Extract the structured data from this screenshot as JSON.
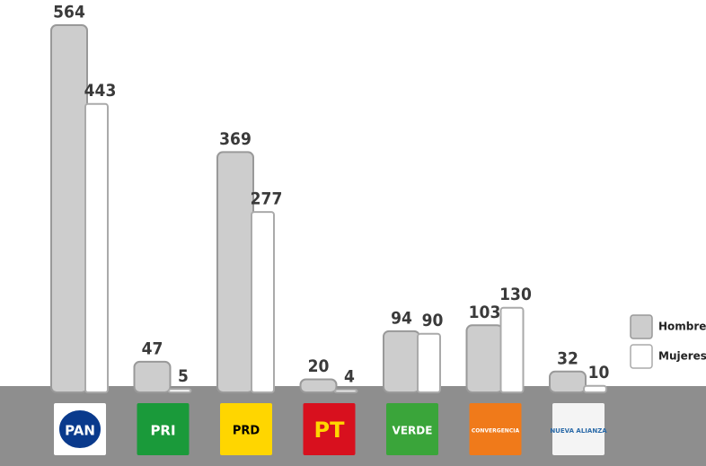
{
  "chart_data": {
    "type": "bar",
    "categories": [
      "PAN",
      "PRI",
      "PRD",
      "PT",
      "VERDE",
      "CONVERGENCIA",
      "NUEVA ALIANZA"
    ],
    "series": [
      {
        "name": "Hombres",
        "color": "#cdcdcd",
        "values": [
          564,
          47,
          369,
          20,
          94,
          103,
          32
        ]
      },
      {
        "name": "Mujeres",
        "color": "#ffffff",
        "values": [
          443,
          5,
          277,
          4,
          90,
          130,
          10
        ]
      }
    ],
    "legend": "right"
  }
}
